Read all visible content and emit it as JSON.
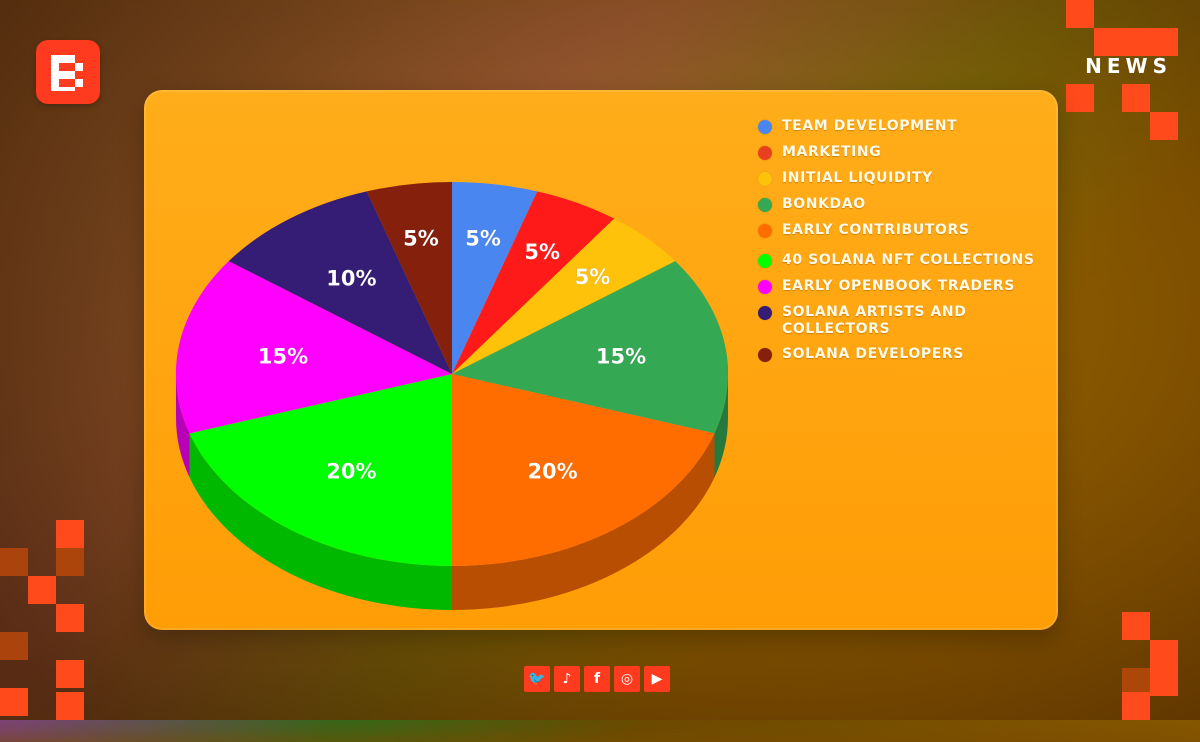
{
  "brand": {
    "logo_letter": "B",
    "news_label": "NEWS",
    "accent": "#ff3b1f"
  },
  "chart_data": {
    "type": "pie",
    "style": "3d",
    "legend_placement": "right",
    "slices": [
      {
        "name": "TEAM DEVELOPMENT",
        "value": 5,
        "label": "5%",
        "color": "#4a86f0"
      },
      {
        "name": "MARKETING",
        "value": 5,
        "label": "5%",
        "color": "#ff1a1a"
      },
      {
        "name": "INITIAL LIQUIDITY",
        "value": 5,
        "label": "5%",
        "color": "#ffc20a"
      },
      {
        "name": "BONKDAO",
        "value": 15,
        "label": "15%",
        "color": "#34a853"
      },
      {
        "name": "EARLY CONTRIBUTORS",
        "value": 20,
        "label": "20%",
        "color": "#ff6d01"
      },
      {
        "name": "40 SOLANA NFT COLLECTIONS",
        "value": 20,
        "label": "20%",
        "color": "#00ff00"
      },
      {
        "name": "EARLY OPENBOOK TRADERS",
        "value": 15,
        "label": "15%",
        "color": "#ff00ff"
      },
      {
        "name": "SOLANA ARTISTS AND COLLECTORS",
        "value": 10,
        "label": "10%",
        "color": "#351c75"
      },
      {
        "name": "SOLANA DEVELOPERS",
        "value": 5,
        "label": "5%",
        "color": "#85200c"
      }
    ]
  },
  "legend": {
    "items": [
      {
        "label": "TEAM DEVELOPMENT",
        "color": "#4a86f0"
      },
      {
        "label": "MARKETING",
        "color": "#e8401e"
      },
      {
        "label": "INITIAL LIQUIDITY",
        "color": "#ffc20a"
      },
      {
        "label": "BONKDAO",
        "color": "#34a853"
      },
      {
        "label": "EARLY CONTRIBUTORS",
        "color": "#ff6d01"
      },
      {
        "label": "40 SOLANA NFT COLLECTIONS",
        "color": "#00ff00"
      },
      {
        "label": "EARLY OPENBOOK TRADERS",
        "color": "#ff00ff"
      },
      {
        "label": "SOLANA ARTISTS AND COLLECTORS",
        "color": "#351c75"
      },
      {
        "label": "SOLANA DEVELOPERS",
        "color": "#85200c"
      }
    ]
  },
  "social": [
    {
      "name": "twitter-icon",
      "glyph": "🐦"
    },
    {
      "name": "tiktok-icon",
      "glyph": "♪"
    },
    {
      "name": "facebook-icon",
      "glyph": "f"
    },
    {
      "name": "instagram-icon",
      "glyph": "◎"
    },
    {
      "name": "youtube-icon",
      "glyph": "▶"
    }
  ]
}
